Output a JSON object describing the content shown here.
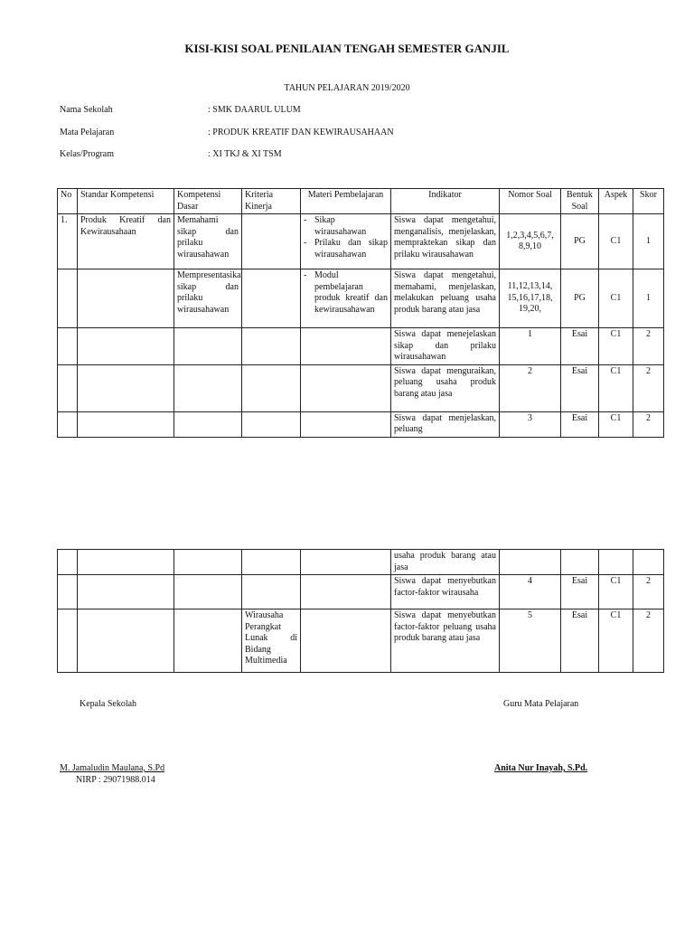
{
  "header": {
    "title": "KISI-KISI SOAL PENILAIAN TENGAH SEMESTER GANJIL",
    "subtitle": "TAHUN PELAJARAN 2019/2020"
  },
  "info": [
    {
      "label": "Nama Sekolah",
      "value": ": SMK DAARUL ULUM"
    },
    {
      "label": "Mata Pelajaran",
      "value": ": PRODUK KREATIF DAN KEWIRAUSAHAAN"
    },
    {
      "label": "Kelas/Program",
      "value": ": XI TKJ & XI TSM"
    }
  ],
  "table": {
    "columns": [
      "No",
      "Standar Kompetensi",
      "Kompetensi Dasar",
      "Kriteria Kinerja",
      "Materi Pembelajaran",
      "Indikator",
      "Nomor Soal",
      "Bentuk Soal",
      "Aspek",
      "Skor"
    ],
    "rows_page1": [
      {
        "no": "1.",
        "sk": "Produk Kreatif dan Kewirausahaan",
        "kd": "Memahami sikap dan prilaku wirausahawan",
        "kk": "",
        "materi": [
          "Sikap wirausahawan",
          "Prilaku dan sikap wirausahawan"
        ],
        "indikator": "Siswa dapat mengetahui, menganalisis, menjelaskan, mempraktekan sikap dan prilaku wirausahawan",
        "nomor": "1,2,3,4,5,6,7, 8,9,10",
        "bentuk": "PG",
        "aspek": "C1",
        "skor": "1"
      },
      {
        "no": "",
        "sk": "",
        "kd": "Mempresentasikan sikap dan prilaku wirausahawan",
        "kk": "",
        "materi": [
          "Modul pembelajaran produk kreatif dan kewirausahawan"
        ],
        "indikator": "Siswa dapat mengetahui, memahami, menjelaskan, melakukan peluang usaha produk barang atau jasa",
        "nomor": "11,12,13,14, 15,16,17,18, 19,20,",
        "bentuk": "PG",
        "aspek": "C1",
        "skor": "1"
      },
      {
        "no": "",
        "sk": "",
        "kd": "",
        "kk": "",
        "materi": [],
        "indikator": "Siswa dapat menejelaskan sikap dan prilaku wirausahawan",
        "nomor": "1",
        "bentuk": "Esai",
        "aspek": "C1",
        "skor": "2"
      },
      {
        "no": "",
        "sk": "",
        "kd": "",
        "kk": "",
        "materi": [],
        "indikator": "Siswa dapat menguraikan, peluang usaha produk barang atau jasa",
        "nomor": "2",
        "bentuk": "Esai",
        "aspek": "C1",
        "skor": "2"
      },
      {
        "no": "",
        "sk": "",
        "kd": "",
        "kk": "",
        "materi": [],
        "indikator": "Siswa dapat menjelaskan, peluang",
        "nomor": "3",
        "bentuk": "Esai",
        "aspek": "C1",
        "skor": "2"
      }
    ],
    "rows_page2": [
      {
        "no": "",
        "sk": "",
        "kd": "",
        "kk": "",
        "materi": [],
        "indikator": "usaha produk barang atau jasa",
        "nomor": "",
        "bentuk": "",
        "aspek": "",
        "skor": ""
      },
      {
        "no": "",
        "sk": "",
        "kd": "",
        "kk": "",
        "materi": [],
        "indikator": "Siswa dapat menyebutkan factor-faktor wirausaha",
        "nomor": "4",
        "bentuk": "Esai",
        "aspek": "C1",
        "skor": "2"
      },
      {
        "no": "",
        "sk": "",
        "kd": "",
        "kk": "Wirausaha Perangkat Lunak di Bidang Multimedia",
        "materi": [],
        "indikator": "Siswa dapat menyebutkan factor-faktor peluang usaha produk barang atau jasa",
        "nomor": "5",
        "bentuk": "Esai",
        "aspek": "C1",
        "skor": "2"
      }
    ]
  },
  "signatures": {
    "left_title": "Kepala Sekolah",
    "left_name": "M. Jamaludin Maulana, S.Pd",
    "left_id": "NIRP : 29071988.014",
    "right_title": "Guru Mata Pelajaran",
    "right_name": "Anita Nur Inayah, S.Pd."
  }
}
